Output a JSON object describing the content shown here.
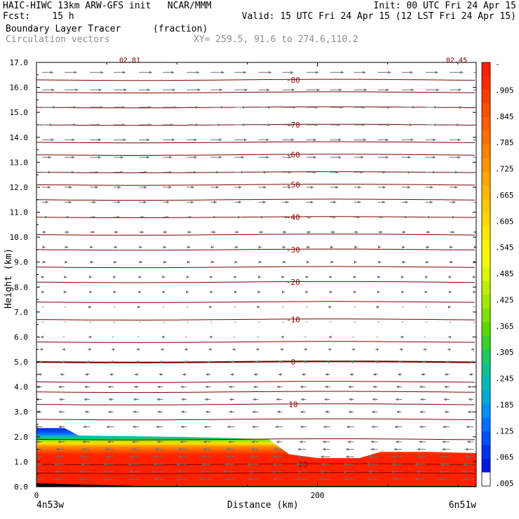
{
  "header": {
    "line1_left": "HAIC-HIWC 13km ARW-GFS init   NCAR/MMM",
    "line1_right": "Init: 00 UTC Fri 24 Apr 15",
    "line2_left": "Fcst:    15 h",
    "line2_right": "Valid: 15 UTC Fri 24 Apr 15 (12 LST Fri 24 Apr 15)",
    "line3_left": "Boundary Layer Tracer",
    "line3_units": "(fraction)",
    "line4_left": "Circulation vectors",
    "line4_xy": "XY= 259.5, 91.6 to 274.6,110.2"
  },
  "chart_data": {
    "type": "heatmap",
    "description_field": "Boundary Layer Tracer (fraction) cross-section with isotherm contours and circulation vectors",
    "xlabel": "Distance (km)",
    "ylabel": "Height (km)",
    "xlim": [
      0,
      313
    ],
    "ylim": [
      0,
      17
    ],
    "x_ticks": [
      {
        "value": 0,
        "label": "0"
      },
      {
        "value": 200,
        "label": "200"
      }
    ],
    "x_end_labels": {
      "left": "4n53w",
      "right": "6n51w"
    },
    "y_ticks": [
      "0.0",
      "1.0",
      "2.0",
      "3.0",
      "4.0",
      "5.0",
      "6.0",
      "7.0",
      "8.0",
      "9.0",
      "10.0",
      "11.0",
      "12.0",
      "13.0",
      "14.0",
      "15.0",
      "16.0",
      "17.0"
    ],
    "corner_labels": {
      "left": "02.81",
      "right": "02.45"
    },
    "colorbar": {
      "labels": [
        "-",
        ".905",
        ".845",
        ".785",
        ".725",
        ".665",
        ".605",
        ".545",
        ".485",
        ".425",
        ".365",
        ".305",
        ".245",
        ".185",
        ".125",
        ".065",
        ".005"
      ],
      "colors": [
        "#ff1e00",
        "#ff2a00",
        "#ff3c00",
        "#ff4e00",
        "#ff5f00",
        "#ff7000",
        "#ff8200",
        "#ff9400",
        "#ffa600",
        "#ffb800",
        "#ffc800",
        "#ffd800",
        "#ffe800",
        "#fff400",
        "#f4fa00",
        "#dcf800",
        "#c0f000",
        "#a0e800",
        "#80e000",
        "#5cd800",
        "#3cd02c",
        "#20c860",
        "#10c090",
        "#00b8b8",
        "#00a8d8",
        "#0090f0",
        "#0070ff",
        "#0050ff",
        "#0030f0",
        "#0018e0",
        "#ffffff"
      ]
    },
    "boundary_layer_top_km": {
      "x": [
        0,
        20,
        30,
        100,
        140,
        165,
        180,
        200,
        230,
        245,
        280,
        313
      ],
      "y": [
        2.35,
        2.35,
        2.05,
        2.0,
        1.95,
        1.9,
        1.3,
        1.15,
        1.15,
        1.4,
        1.4,
        1.35
      ]
    },
    "isotherms": [
      {
        "label": "20",
        "height_km": 0.9
      },
      {
        "label": "10",
        "height_km": 3.3
      },
      {
        "label": "0",
        "height_km": 5.0
      },
      {
        "label": "-10",
        "height_km": 6.7
      },
      {
        "label": "-20",
        "height_km": 8.2
      },
      {
        "label": "-30",
        "height_km": 9.5
      },
      {
        "label": "-40",
        "height_km": 10.8
      },
      {
        "label": "-50",
        "height_km": 12.1
      },
      {
        "label": "-60",
        "height_km": 13.3
      },
      {
        "label": "-70",
        "height_km": 14.5
      },
      {
        "label": "-80",
        "height_km": 16.3
      }
    ],
    "extra_contour_heights_km": [
      0.55,
      1.9,
      2.7,
      3.8,
      4.2,
      5.8,
      7.4,
      8.8,
      10.1,
      11.5,
      12.6,
      13.8,
      15.2,
      15.8
    ],
    "vectors": {
      "columns_km": [
        4,
        20,
        38,
        55,
        73,
        90,
        107,
        124,
        141,
        158,
        175,
        192,
        209,
        226,
        243,
        260,
        277,
        294,
        311
      ],
      "levels_km": [
        0.3,
        0.6,
        0.9,
        1.2,
        1.5,
        1.8,
        2.4,
        3.0,
        3.5,
        4.0,
        4.5,
        5.0,
        5.5,
        6.0,
        6.6,
        7.2,
        7.8,
        8.4,
        9.0,
        9.6,
        10.2,
        10.8,
        11.4,
        12.0,
        12.6,
        13.2,
        13.9,
        14.5,
        15.2,
        15.9,
        16.6
      ],
      "u_profile": [
        -9,
        -9,
        -9,
        -8,
        -7,
        -6,
        -6,
        -5,
        -5,
        -5,
        -4,
        -3,
        -2,
        -1,
        0,
        1,
        2,
        2,
        3,
        3,
        4,
        5,
        6,
        7,
        8,
        9,
        10,
        10,
        11,
        11,
        11
      ]
    }
  }
}
